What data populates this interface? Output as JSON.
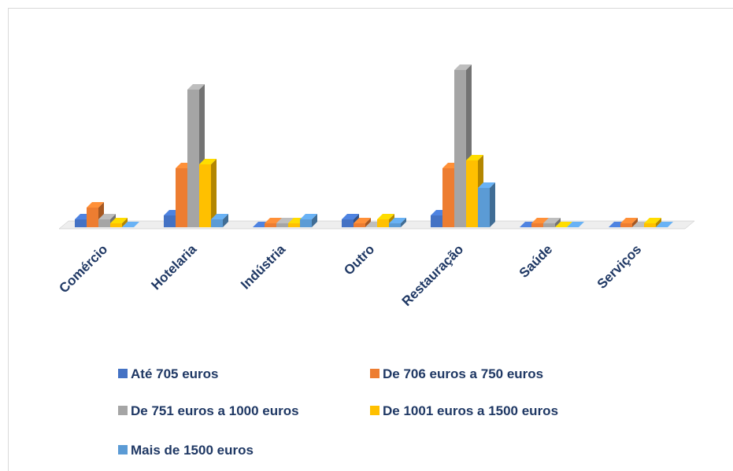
{
  "chart_data": {
    "type": "bar3d",
    "categories": [
      "Comércio",
      "Hotelaria",
      "Indústria",
      "Outro",
      "Restauração",
      "Saúde",
      "Serviços"
    ],
    "series": [
      {
        "name": "Até 705 euros",
        "color": "#4472c4",
        "values": [
          2,
          3,
          0,
          2,
          3,
          0,
          0
        ]
      },
      {
        "name": "De 706 euros a 750 euros",
        "color": "#ed7d31",
        "values": [
          5,
          15,
          1,
          1,
          15,
          1,
          1
        ]
      },
      {
        "name": "De 751 euros a 1000 euros",
        "color": "#a5a5a5",
        "values": [
          2,
          35,
          1,
          0,
          40,
          1,
          0
        ]
      },
      {
        "name": "De 1001 euros a 1500 euros",
        "color": "#ffc000",
        "values": [
          1,
          16,
          1,
          2,
          17,
          0,
          1
        ]
      },
      {
        "name": "Mais de 1500 euros",
        "color": "#5b9bd5",
        "values": [
          0,
          2,
          2,
          1,
          10,
          0,
          0
        ]
      }
    ]
  }
}
